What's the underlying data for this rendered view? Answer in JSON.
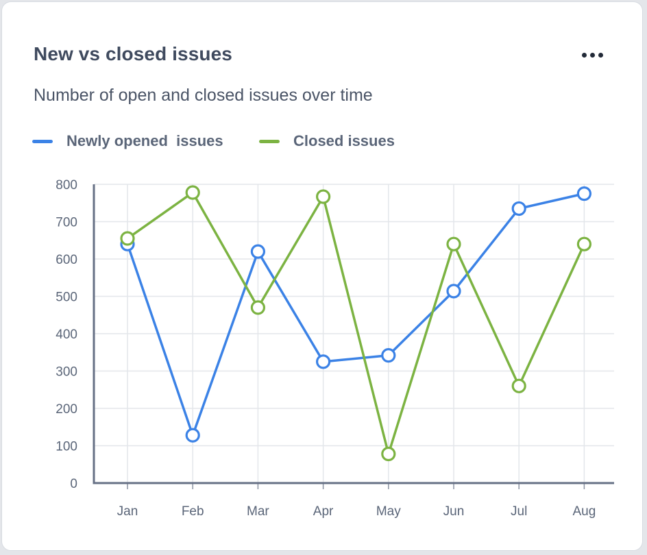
{
  "header": {
    "title": "New vs closed issues",
    "subtitle": "Number of open and closed issues over time",
    "menu_icon": "more-horizontal-icon"
  },
  "chart_data": {
    "type": "line",
    "title": "New vs closed issues",
    "subtitle": "Number of open and closed issues over time",
    "xlabel": "",
    "ylabel": "",
    "categories": [
      "Jan",
      "Feb",
      "Mar",
      "Apr",
      "May",
      "Jun",
      "Jul",
      "Aug"
    ],
    "ylim": [
      0,
      800
    ],
    "yticks": [
      0,
      100,
      200,
      300,
      400,
      500,
      600,
      700,
      800
    ],
    "grid": true,
    "legend_position": "top-left",
    "series": [
      {
        "name": "Newly opened  issues",
        "color": "#3b82e6",
        "values": [
          640,
          128,
          620,
          325,
          342,
          514,
          735,
          775
        ]
      },
      {
        "name": "Closed issues",
        "color": "#7cb342",
        "values": [
          655,
          778,
          470,
          767,
          78,
          640,
          260,
          640
        ]
      }
    ]
  }
}
